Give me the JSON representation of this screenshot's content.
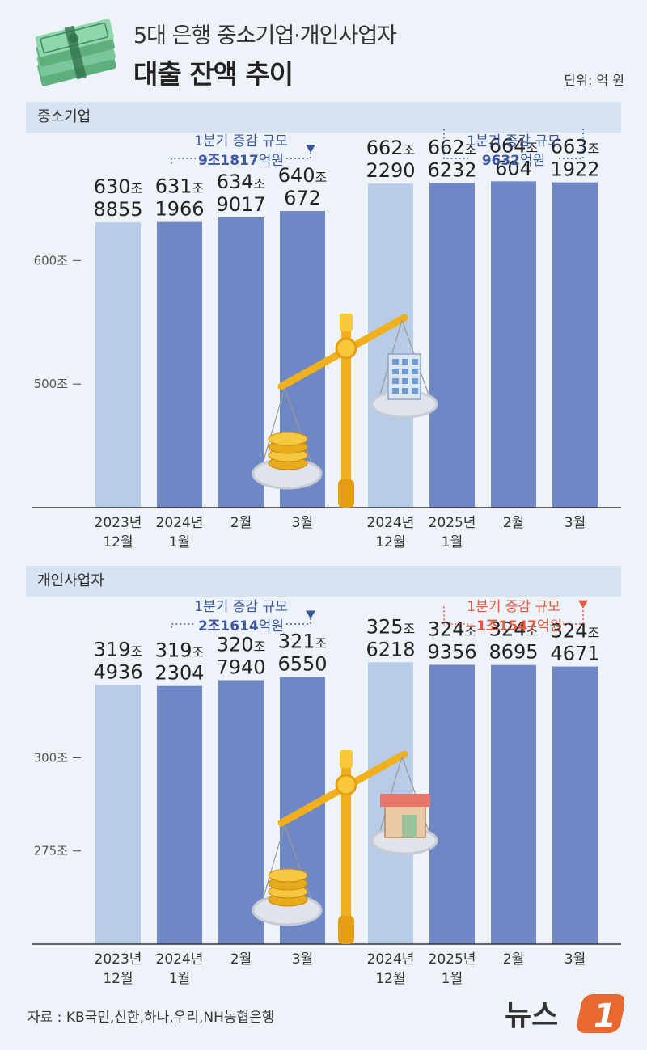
{
  "header": {
    "title_line1": "5대 은행 중소기업·개인사업자",
    "title_line2": "대출 잔액 추이",
    "unit": "단위: 억 원"
  },
  "sections": [
    {
      "label": "중소기업"
    },
    {
      "label": "개인사업자"
    }
  ],
  "source": "자료 : KB국민,신한,하나,우리,NH농협은행",
  "logo": {
    "text": "뉴스",
    "mark": "1",
    "accent": "#e8682f"
  },
  "colors": {
    "bar_light": "#b8cce8",
    "bar_dark": "#6f87c5",
    "accent_blue": "#3b57a0",
    "accent_red": "#e05a3e",
    "background": "#eef3fa",
    "section_bar": "#d7e3f3"
  },
  "chart_data": [
    {
      "type": "bar",
      "categories": [
        [
          "2023년",
          "12월"
        ],
        [
          "2024년",
          "1월"
        ],
        [
          "2월"
        ],
        [
          "3월"
        ],
        [
          "2024년",
          "12월"
        ],
        [
          "2025년",
          "1월"
        ],
        [
          "2월"
        ],
        [
          "3월"
        ]
      ],
      "values": [
        6308855,
        6311966,
        6349017,
        6400672,
        6622290,
        6626232,
        6640604,
        6631922
      ],
      "label_top": [
        "630",
        "631",
        "634",
        "640",
        "662",
        "662",
        "664",
        "663"
      ],
      "label_bottom": [
        "8855",
        "1966",
        "9017",
        "672",
        "2290",
        "6232",
        "604",
        "1922"
      ],
      "label_unit": "조",
      "highlight": [
        0,
        4
      ],
      "yticks": [
        {
          "value": 5000000,
          "label": "500조"
        },
        {
          "value": 6000000,
          "label": "600조"
        }
      ],
      "ylim": [
        4000000,
        6800000
      ],
      "annotations": [
        {
          "line1": "1분기 증감 규모",
          "line2_number": "9조1817",
          "line2_unit": "억원",
          "from": 1,
          "to": 3,
          "color": "#3b57a0"
        },
        {
          "line1": "1분기 증감 규모",
          "line2_number": "9632",
          "line2_unit": "억원",
          "from": 5,
          "to": 7,
          "color": "#3b57a0"
        }
      ]
    },
    {
      "type": "bar",
      "categories": [
        [
          "2023년",
          "12월"
        ],
        [
          "2024년",
          "1월"
        ],
        [
          "2월"
        ],
        [
          "3월"
        ],
        [
          "2024년",
          "12월"
        ],
        [
          "2025년",
          "1월"
        ],
        [
          "2월"
        ],
        [
          "3월"
        ]
      ],
      "values": [
        3194936,
        3192304,
        3207940,
        3216550,
        3256218,
        3249356,
        3248695,
        3244671
      ],
      "label_top": [
        "319",
        "319",
        "320",
        "321",
        "325",
        "324",
        "324",
        "324"
      ],
      "label_bottom": [
        "4936",
        "2304",
        "7940",
        "6550",
        "6218",
        "9356",
        "8695",
        "4671"
      ],
      "label_unit": "조",
      "highlight": [
        0,
        4
      ],
      "yticks": [
        {
          "value": 2750000,
          "label": "275조"
        },
        {
          "value": 3000000,
          "label": "300조"
        }
      ],
      "ylim": [
        2500000,
        3350000
      ],
      "annotations": [
        {
          "line1": "1분기 증감 규모",
          "line2_number": "2조1614",
          "line2_unit": "억원",
          "from": 1,
          "to": 3,
          "color": "#3b57a0"
        },
        {
          "line1": "1분기 증감 규모",
          "line2_number": "−1조1547",
          "line2_unit": "억원",
          "from": 5,
          "to": 7,
          "color": "#e05a3e"
        }
      ]
    }
  ]
}
